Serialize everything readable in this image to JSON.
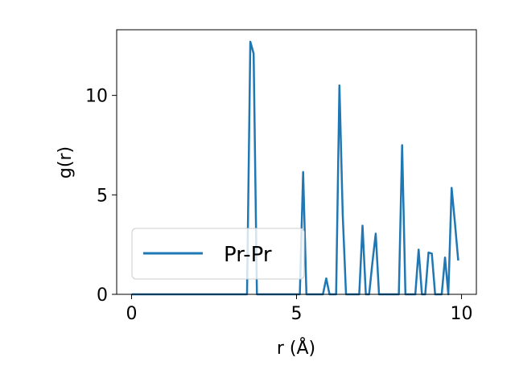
{
  "chart_data": {
    "type": "line",
    "xlabel": "r (Å)",
    "ylabel": "g(r)",
    "xlim": [
      -0.45,
      10.45
    ],
    "ylim": [
      0,
      13.3
    ],
    "xticks": [
      0,
      5,
      10
    ],
    "yticks": [
      0,
      5,
      10
    ],
    "x_tick_labels": [
      "0",
      "5",
      "10"
    ],
    "y_tick_labels": [
      "0",
      "5",
      "10"
    ],
    "legend_position": "lower-left",
    "grid": false,
    "series": [
      {
        "name": "Pr-Pr",
        "color": "#1f77b4",
        "points": [
          [
            0,
            0
          ],
          [
            3.5,
            0
          ],
          [
            3.6,
            12.7
          ],
          [
            3.7,
            12.1
          ],
          [
            3.8,
            0
          ],
          [
            5.1,
            0
          ],
          [
            5.2,
            6.15
          ],
          [
            5.3,
            0
          ],
          [
            5.8,
            0
          ],
          [
            5.9,
            0.8
          ],
          [
            6.0,
            0
          ],
          [
            6.2,
            0
          ],
          [
            6.3,
            10.5
          ],
          [
            6.4,
            4.0
          ],
          [
            6.5,
            0
          ],
          [
            6.9,
            0
          ],
          [
            7.0,
            3.45
          ],
          [
            7.1,
            0
          ],
          [
            7.2,
            0
          ],
          [
            7.3,
            1.6
          ],
          [
            7.4,
            3.05
          ],
          [
            7.5,
            0
          ],
          [
            8.1,
            0
          ],
          [
            8.2,
            7.5
          ],
          [
            8.3,
            0
          ],
          [
            8.6,
            0
          ],
          [
            8.7,
            2.25
          ],
          [
            8.8,
            0
          ],
          [
            8.9,
            0
          ],
          [
            9.0,
            2.1
          ],
          [
            9.1,
            2.05
          ],
          [
            9.2,
            0
          ],
          [
            9.4,
            0
          ],
          [
            9.5,
            1.85
          ],
          [
            9.6,
            0
          ],
          [
            9.7,
            5.35
          ],
          [
            9.8,
            3.6
          ],
          [
            9.9,
            1.7
          ]
        ]
      }
    ]
  },
  "legend": {
    "label": "Pr-Pr"
  }
}
